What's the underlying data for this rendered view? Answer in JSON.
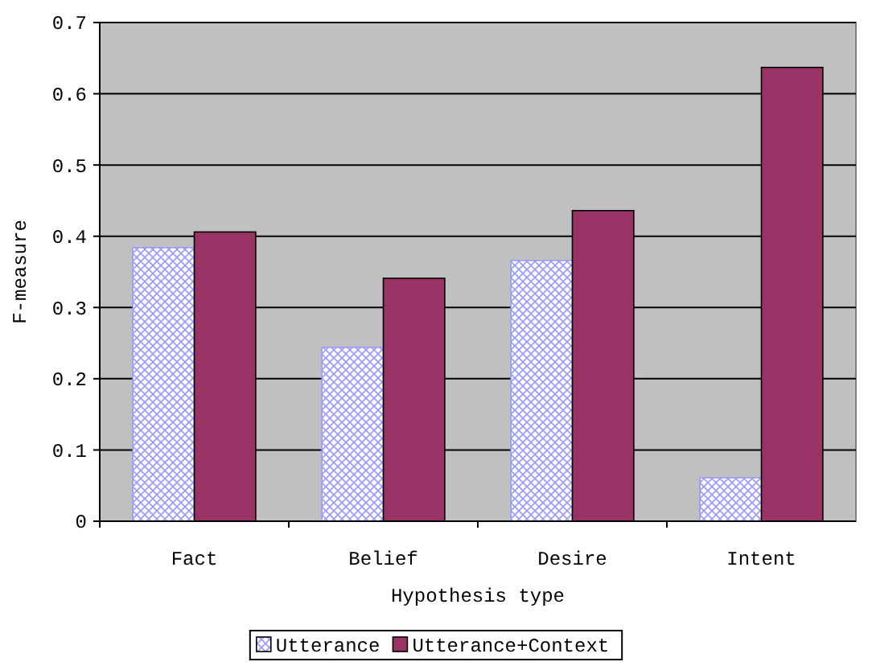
{
  "chart_data": {
    "type": "bar",
    "xlabel": "Hypothesis type",
    "ylabel": "F-measure",
    "categories": [
      "Fact",
      "Belief",
      "Desire",
      "Intent"
    ],
    "series": [
      {
        "name": "Utterance",
        "color": "#9999ff",
        "values": [
          0.384,
          0.244,
          0.366,
          0.061
        ]
      },
      {
        "name": "Utterance+Context",
        "color": "#993366",
        "values": [
          0.406,
          0.341,
          0.436,
          0.637
        ]
      }
    ],
    "ylim": [
      0,
      0.7
    ],
    "yticks": [
      0,
      0.1,
      0.2,
      0.3,
      0.4,
      0.5,
      0.6,
      0.7
    ],
    "grid": "y",
    "legend": "bottom"
  }
}
